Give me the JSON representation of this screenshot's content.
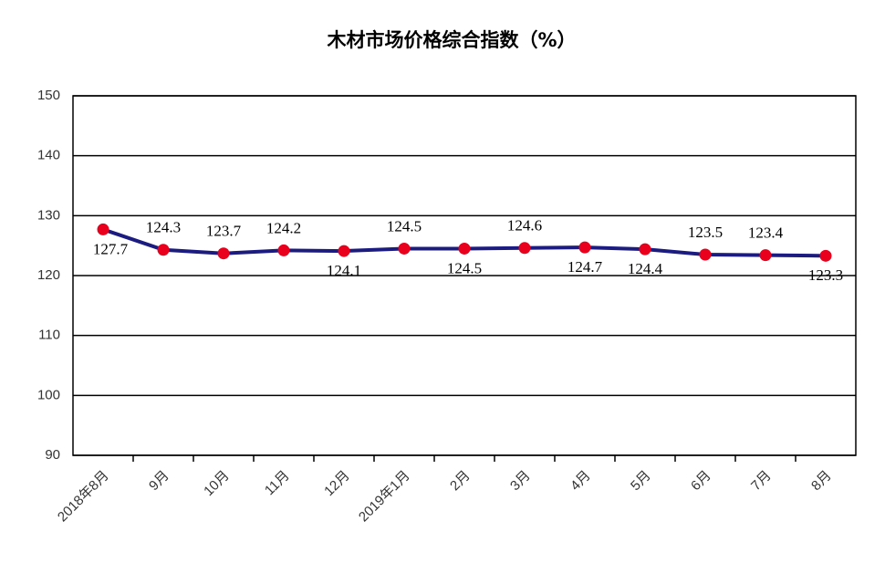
{
  "chart_data": {
    "type": "line",
    "title": "木材市场价格综合指数（%）",
    "categories": [
      "2018年8月",
      "9月",
      "10月",
      "11月",
      "12月",
      "2019年1月",
      "2月",
      "3月",
      "4月",
      "5月",
      "6月",
      "7月",
      "8月"
    ],
    "series": [
      {
        "name": "木材市场价格综合指数",
        "color": "#1c1c80",
        "marker_color": "#e8001c",
        "values": [
          127.7,
          124.3,
          123.7,
          124.2,
          124.1,
          124.5,
          124.5,
          124.6,
          124.7,
          124.4,
          123.5,
          123.4,
          123.3
        ]
      }
    ],
    "ylim": [
      90,
      150
    ],
    "yticks": [
      90,
      100,
      110,
      120,
      130,
      140,
      150
    ],
    "grid": true,
    "legend": false
  }
}
